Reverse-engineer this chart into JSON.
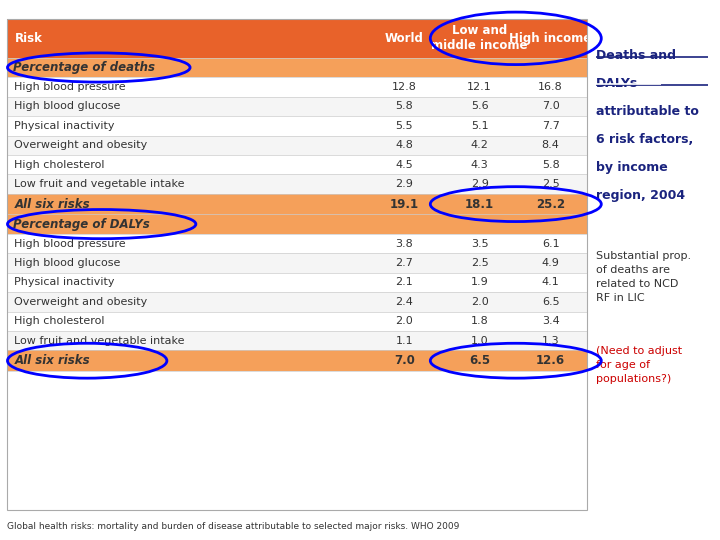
{
  "header": [
    "Risk",
    "World",
    "Low and\nmiddle income",
    "High income"
  ],
  "section1_label": "Percentage of deaths",
  "section1_rows": [
    [
      "High blood pressure",
      "12.8",
      "12.1",
      "16.8"
    ],
    [
      "High blood glucose",
      "5.8",
      "5.6",
      "7.0"
    ],
    [
      "Physical inactivity",
      "5.5",
      "5.1",
      "7.7"
    ],
    [
      "Overweight and obesity",
      "4.8",
      "4.2",
      "8.4"
    ],
    [
      "High cholesterol",
      "4.5",
      "4.3",
      "5.8"
    ],
    [
      "Low fruit and vegetable intake",
      "2.9",
      "2.9",
      "2.5"
    ]
  ],
  "section1_total": [
    "All six risks",
    "19.1",
    "18.1",
    "25.2"
  ],
  "section2_label": "Percentage of DALYs",
  "section2_rows": [
    [
      "High blood pressure",
      "3.8",
      "3.5",
      "6.1"
    ],
    [
      "High blood glucose",
      "2.7",
      "2.5",
      "4.9"
    ],
    [
      "Physical inactivity",
      "2.1",
      "1.9",
      "4.1"
    ],
    [
      "Overweight and obesity",
      "2.4",
      "2.0",
      "6.5"
    ],
    [
      "High cholesterol",
      "2.0",
      "1.8",
      "3.4"
    ],
    [
      "Low fruit and vegetable intake",
      "1.1",
      "1.0",
      "1.3"
    ]
  ],
  "section2_total": [
    "All six risks",
    "7.0",
    "6.5",
    "12.6"
  ],
  "footer": "Global health risks: mortality and burden of disease attributable to selected major risks. WHO 2009",
  "subtitle1": "Substantial prop.\nof deaths are\nrelated to NCD\nRF in LIC",
  "subtitle2": "(Need to adjust\nfor age of\npopulations?)",
  "header_bg": "#E8622A",
  "section_header_bg": "#F5A05A",
  "row_alt1": "#FFFFFF",
  "row_alt2": "#F5F5F5",
  "total_row_bg": "#F5A05A",
  "title_text": "#1a237e",
  "subtitle1_text": "#333333",
  "subtitle2_text": "#cc0000",
  "body_text": "#333333"
}
